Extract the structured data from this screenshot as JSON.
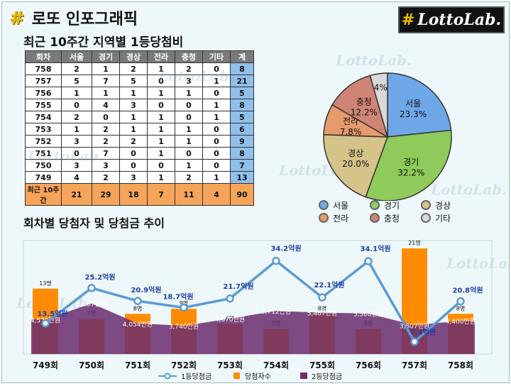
{
  "header": {
    "title": "로또 인포그래픽",
    "subtitle": "최근 10주간 지역별 1등당첨비",
    "logo_text": "LottoLab.",
    "logo_symbol": "#"
  },
  "table": {
    "headers": [
      "회차",
      "서울",
      "경기",
      "경상",
      "전라",
      "충청",
      "기타",
      "계"
    ],
    "rows": [
      [
        "758",
        "2",
        "1",
        "2",
        "1",
        "2",
        "0",
        "8"
      ],
      [
        "757",
        "5",
        "7",
        "5",
        "0",
        "3",
        "1",
        "21"
      ],
      [
        "756",
        "1",
        "1",
        "1",
        "1",
        "1",
        "0",
        "5"
      ],
      [
        "755",
        "0",
        "4",
        "3",
        "0",
        "0",
        "1",
        "8"
      ],
      [
        "754",
        "2",
        "0",
        "1",
        "1",
        "0",
        "1",
        "5"
      ],
      [
        "753",
        "1",
        "2",
        "1",
        "1",
        "1",
        "0",
        "6"
      ],
      [
        "752",
        "3",
        "2",
        "2",
        "1",
        "1",
        "0",
        "9"
      ],
      [
        "751",
        "0",
        "7",
        "0",
        "1",
        "0",
        "0",
        "8"
      ],
      [
        "750",
        "3",
        "3",
        "0",
        "0",
        "1",
        "0",
        "7"
      ],
      [
        "749",
        "4",
        "2",
        "3",
        "1",
        "2",
        "1",
        "13"
      ]
    ],
    "total": [
      "최근 10주간",
      "21",
      "29",
      "18",
      "7",
      "11",
      "4",
      "90"
    ]
  },
  "section2_title": "회차별 당첨자 및 당첨금 추이",
  "watermark": "LottoLab.",
  "colors": {
    "seoul": "#6fa8e8",
    "gyeonggi": "#8ecb5a",
    "gyeongsang": "#d6c38a",
    "jeolla": "#e79a6c",
    "chungcheong": "#cf8476",
    "etc": "#d9d9d9",
    "bar": "#ff8c00",
    "line": "#5b9bd5",
    "area": "#6a2c6e",
    "line_label": "#1f3ea8"
  },
  "chart_data": [
    {
      "type": "pie",
      "labels": [
        "서울",
        "경기",
        "경상",
        "전라",
        "충청",
        "기타"
      ],
      "values": [
        23.3,
        32.2,
        20.0,
        7.8,
        12.2,
        4.4
      ],
      "display_labels": [
        "서울\n23.3%",
        "경기\n32.2%",
        "경상\n20.0%",
        "전라\n7.8%",
        "충청\n12.2%",
        "4%"
      ],
      "legend": [
        "서울",
        "경기",
        "경상",
        "전라",
        "충청",
        "기타"
      ],
      "legend_position": "bottom"
    },
    {
      "type": "bar",
      "categories": [
        "749회",
        "750회",
        "751회",
        "752회",
        "753회",
        "754회",
        "755회",
        "756회",
        "757회",
        "758회"
      ],
      "series": [
        {
          "name": "1등당첨금",
          "type": "line",
          "values": [
            13.5,
            25.2,
            20.9,
            18.7,
            21.7,
            34.2,
            22.1,
            34.1,
            7.4,
            20.8
          ],
          "labels": [
            "13.5억원",
            "25.2억원",
            "20.9억원",
            "18.7억원",
            "21.7억원",
            "34.2억원",
            "22.1억원",
            "34.1억원",
            "7.4억원",
            "20.8억원"
          ]
        },
        {
          "name": "당첨자수",
          "type": "bar",
          "values": [
            13,
            7,
            8,
            9,
            6,
            5,
            8,
            5,
            21,
            8
          ],
          "labels": [
            "13명",
            "7명",
            "8명",
            "9명",
            "6명",
            "5명",
            "8명",
            "5명",
            "21명",
            "8명"
          ]
        },
        {
          "name": "2등당첨금",
          "type": "area",
          "values": [
            4570,
            6687,
            4054,
            3740,
            4670,
            5712,
            5467,
            5368,
            3807,
            4400
          ],
          "labels": [
            "4,570만원",
            "6,687만원",
            "4,054만원",
            "3,740만원",
            "4,670만원",
            "5,712만원",
            "5,467만원",
            "5,368만원",
            "3,807만원",
            "4,400만원"
          ]
        }
      ],
      "legend_position": "bottom",
      "grid": false
    }
  ]
}
